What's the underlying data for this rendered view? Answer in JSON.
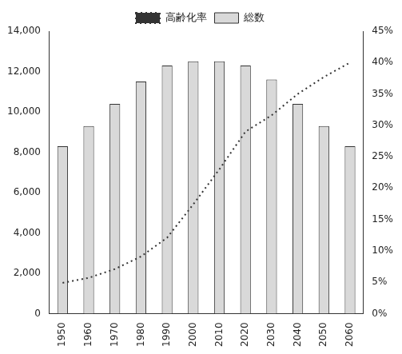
{
  "chart_data": {
    "type": "bar",
    "categories": [
      "1950",
      "1960",
      "1970",
      "1980",
      "1990",
      "2000",
      "2010",
      "2020",
      "2030",
      "2040",
      "2050",
      "2060"
    ],
    "series": [
      {
        "name": "総数",
        "type": "bar",
        "color": "#d9d9d9",
        "values": [
          8300,
          9300,
          10400,
          11500,
          12300,
          12500,
          12500,
          12300,
          11600,
          10400,
          9300,
          8300
        ]
      },
      {
        "name": "高齢化率",
        "type": "line",
        "axis": "y2",
        "color": "#333333",
        "line_style": "dotted",
        "marker": "none",
        "values": [
          4.9,
          5.7,
          7.1,
          9.1,
          12.1,
          17.4,
          23.0,
          29.0,
          31.6,
          35.0,
          37.7,
          40.0
        ]
      }
    ],
    "ylim": [
      0,
      14000
    ],
    "yticks": [
      0,
      {
        "value": 2000,
        "label": "2,000"
      },
      {
        "value": 4000,
        "label": "4,000"
      },
      {
        "value": 6000,
        "label": "6,000"
      },
      {
        "value": 8000,
        "label": "8,000"
      },
      {
        "value": 10000,
        "label": "10,000"
      },
      {
        "value": 12000,
        "label": "12,000"
      },
      {
        "value": 14000,
        "label": "14,000"
      }
    ],
    "y2lim": [
      0,
      45
    ],
    "y2ticks": [
      {
        "value": 0,
        "label": "0%"
      },
      {
        "value": 5,
        "label": "5%"
      },
      {
        "value": 10,
        "label": "10%"
      },
      {
        "value": 15,
        "label": "15%"
      },
      {
        "value": 20,
        "label": "20%"
      },
      {
        "value": 25,
        "label": "25%"
      },
      {
        "value": 30,
        "label": "30%"
      },
      {
        "value": 35,
        "label": "35%"
      },
      {
        "value": 40,
        "label": "40%"
      },
      {
        "value": 45,
        "label": "45%"
      }
    ],
    "grid": false,
    "legend": "top"
  }
}
